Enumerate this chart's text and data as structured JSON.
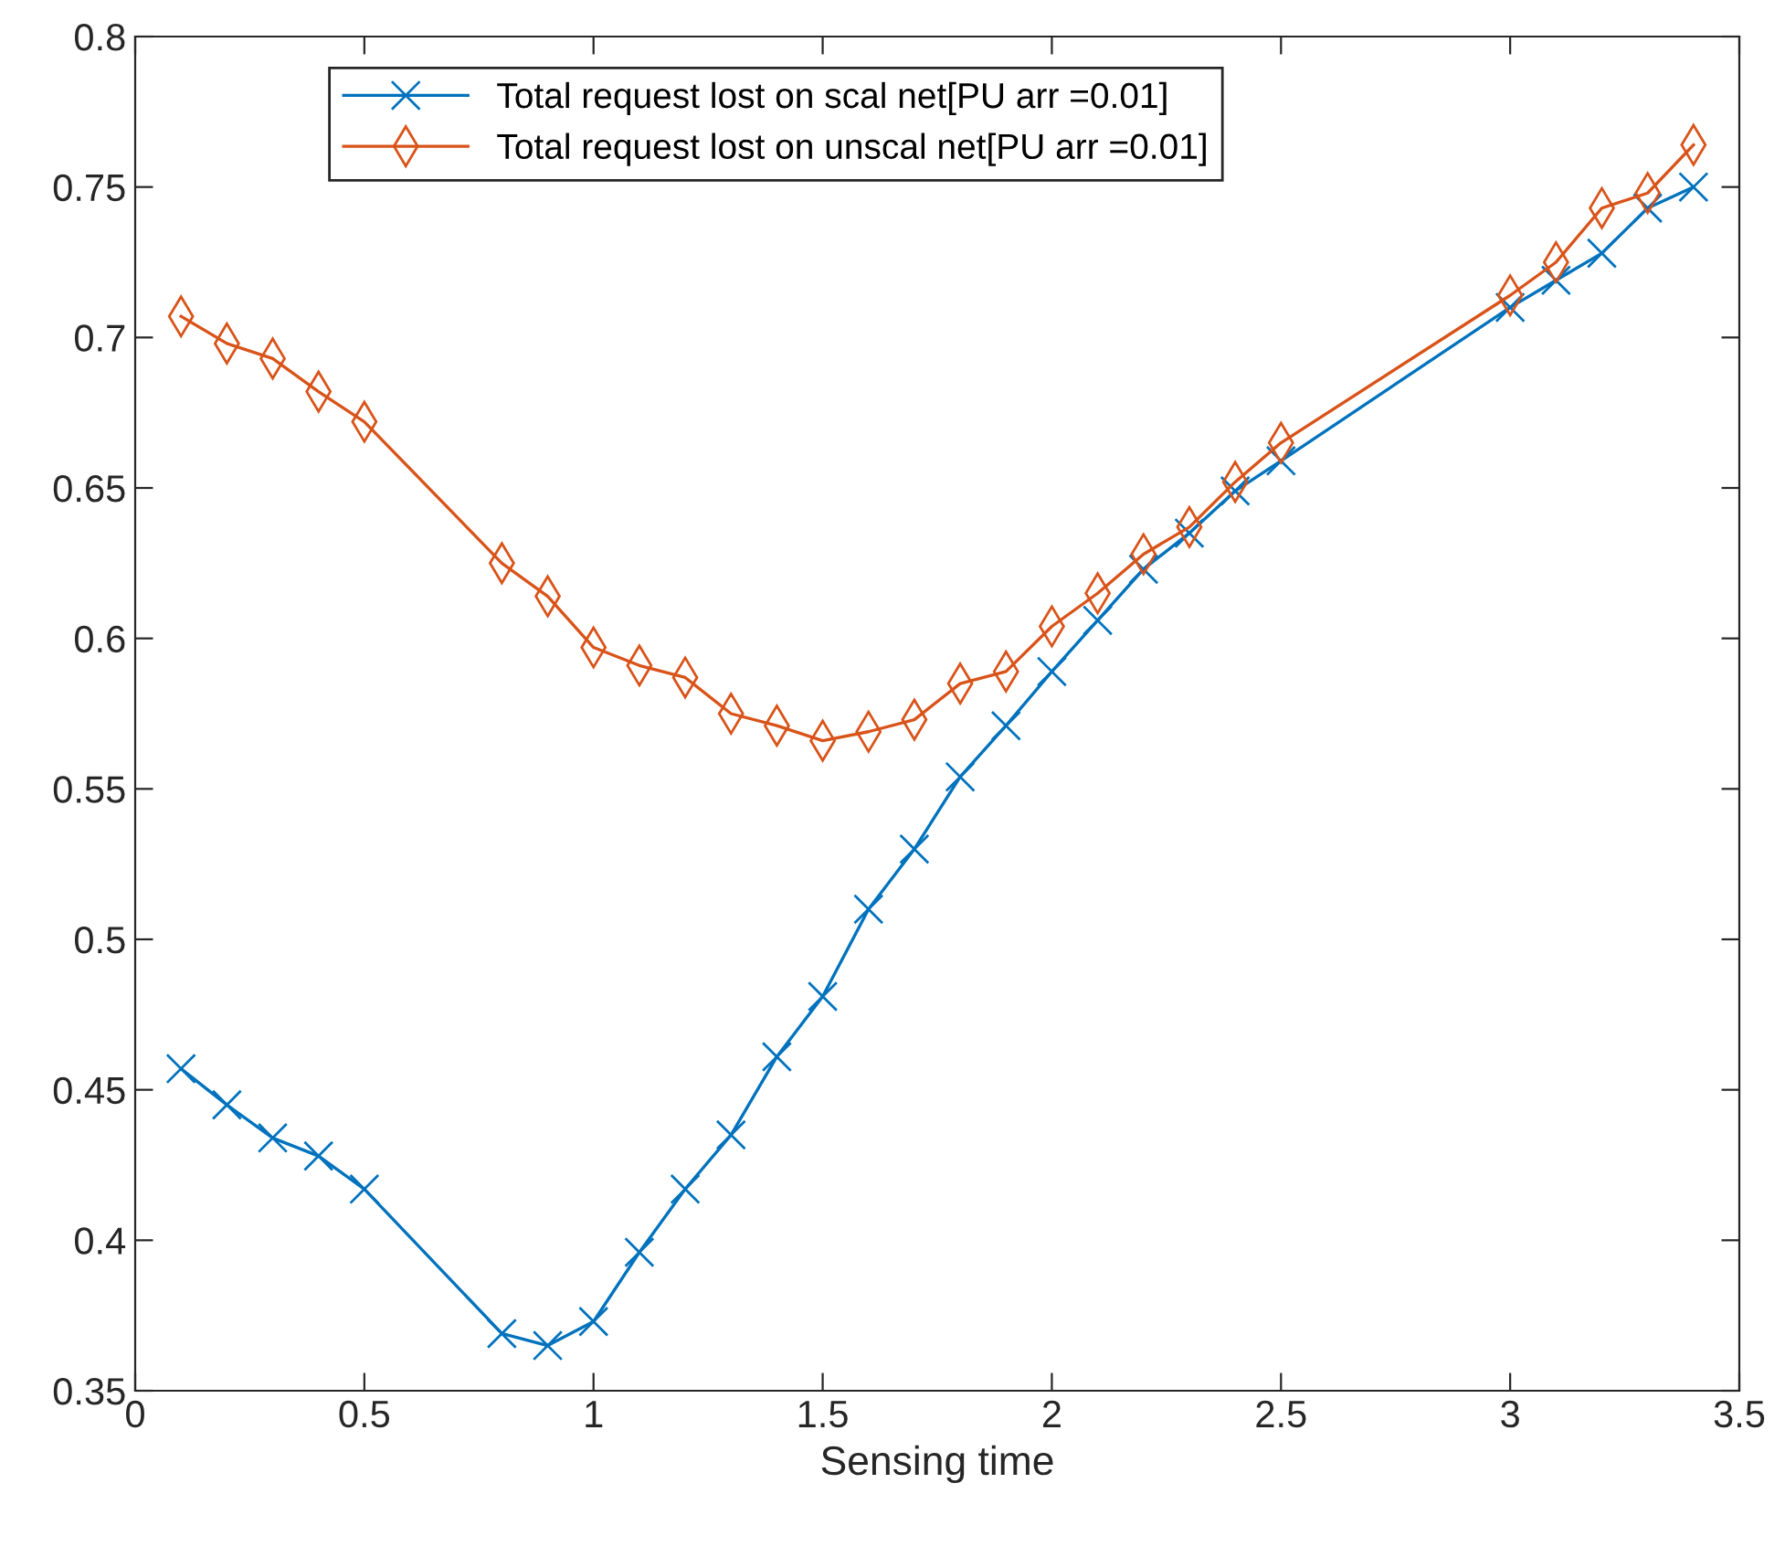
{
  "chart_data": {
    "type": "line",
    "xlabel": "Sensing time",
    "x": [
      0.1,
      0.2,
      0.3,
      0.4,
      0.5,
      0.8,
      0.9,
      1.0,
      1.1,
      1.2,
      1.3,
      1.4,
      1.5,
      1.6,
      1.7,
      1.8,
      1.9,
      2.0,
      2.1,
      2.2,
      2.3,
      2.4,
      2.5,
      3.0,
      3.1,
      3.2,
      3.3,
      3.4
    ],
    "series": [
      {
        "name": "Total request lost on scal net[PU arr =0.01]",
        "color": "#0072bd",
        "marker": "cross",
        "values": [
          0.457,
          0.445,
          0.434,
          0.428,
          0.417,
          0.369,
          0.365,
          0.373,
          0.396,
          0.417,
          0.435,
          0.461,
          0.481,
          0.51,
          0.53,
          0.554,
          0.571,
          0.589,
          0.606,
          0.623,
          0.635,
          0.649,
          0.659,
          0.71,
          0.719,
          0.728,
          0.743,
          0.75
        ]
      },
      {
        "name": "Total request lost on unscal net[PU arr =0.01]",
        "color": "#d95319",
        "marker": "diamond",
        "values": [
          0.707,
          0.698,
          0.693,
          0.682,
          0.672,
          0.625,
          0.614,
          0.597,
          0.591,
          0.587,
          0.575,
          0.571,
          0.566,
          0.569,
          0.573,
          0.585,
          0.589,
          0.604,
          0.615,
          0.628,
          0.637,
          0.652,
          0.665,
          0.714,
          0.725,
          0.743,
          0.748,
          0.764
        ]
      }
    ],
    "xlim": [
      0,
      3.5
    ],
    "xticks": [
      0,
      0.5,
      1,
      1.5,
      2,
      2.5,
      3,
      3.5
    ],
    "ylim": [
      0.35,
      0.8
    ],
    "yticks": [
      0.35,
      0.4,
      0.45,
      0.5,
      0.55,
      0.6,
      0.65,
      0.7,
      0.75,
      0.8
    ],
    "grid": false,
    "legend": "top left",
    "line_style": "solid"
  }
}
